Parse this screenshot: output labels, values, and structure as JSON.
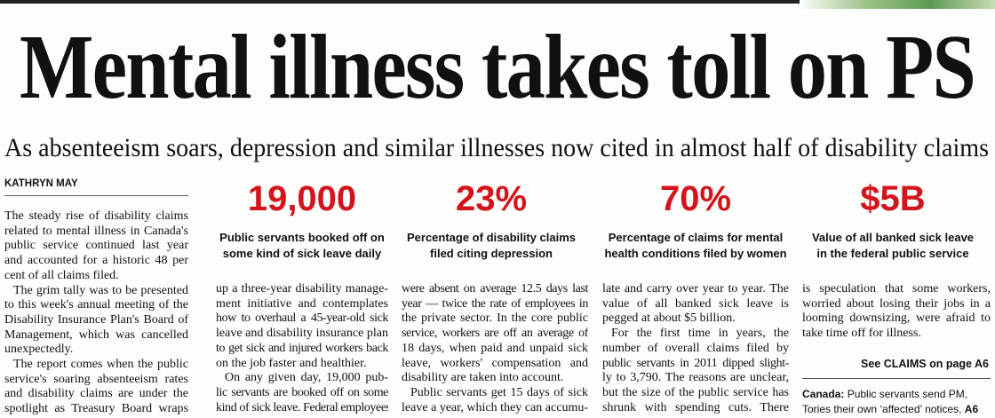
{
  "headline": "Mental illness takes toll on PS",
  "subhead": "As absenteeism soars, depression and similar illnesses now cited in almost half of disability claims",
  "byline": "KATHRYN MAY",
  "stats": [
    {
      "number": "19,000",
      "caption": [
        "Public servants booked off on",
        "some kind of sick leave daily"
      ]
    },
    {
      "number": "23%",
      "caption": [
        "Percentage of disability claims",
        "filed citing depression"
      ]
    },
    {
      "number": "70%",
      "caption": [
        "Percentage of claims for mental",
        "health conditions filed by women"
      ]
    },
    {
      "number": "$5B",
      "caption": [
        "Value of all banked sick leave",
        "in the federal public service"
      ]
    }
  ],
  "columns": [
    [
      [
        "The steady rise of disability claims",
        "related to mental illness in Canada's",
        "public service continued last year",
        "and accounted for a historic 48 per",
        "cent of all claims filed."
      ],
      [
        "The grim tally was to be presented",
        "to this week's annual meeting of the",
        "Disability Insurance Plan's Board of",
        "Management, which was cancelled",
        "unexpectedly."
      ],
      [
        "The report comes when the public",
        "service's soaring absenteeism rates",
        "and disability claims are under the",
        "spotlight as Treasury Board wraps"
      ]
    ],
    [
      [
        "up a three-year disability manage-",
        "ment initiative and contemplates",
        "how to overhaul a 45-year-old sick",
        "leave and disability insurance plan",
        "to get sick and injured workers back",
        "on the job faster and healthier."
      ],
      [
        "On any given day, 19,000 pub-",
        "lic servants are booked off on some",
        "kind of sick leave. Federal employees"
      ]
    ],
    [
      [
        "were absent on average 12.5 days last",
        "year — twice the rate of employees in",
        "the private sector. In the core public",
        "service, workers are off an average of",
        "18 days, when paid and unpaid sick",
        "leave, workers' compensation and",
        "disability are taken into account."
      ],
      [
        "Public servants get 15 days of sick",
        "leave a year, which they can accumu-"
      ]
    ],
    [
      [
        "late and carry over year to year. The",
        "value of all banked sick leave is",
        "pegged at about $5 billion."
      ],
      [
        "For the first time in years, the",
        "number of overall claims filed by",
        "public servants in 2011 dipped slight-",
        "ly to 3,790. The reasons are unclear,",
        "but the size of the public service has",
        "shrunk with spending cuts. There"
      ]
    ],
    [
      [
        "is speculation that some workers,",
        "worried about losing their jobs in a",
        "looming downsizing, were afraid to",
        "take time off for illness."
      ]
    ]
  ],
  "refer": "See CLAIMS on page A6",
  "teaser": {
    "label": "Canada:",
    "lines": [
      "Public servants send PM,",
      "Tories their own ‘affected’ notices,"
    ],
    "page": "A6"
  }
}
